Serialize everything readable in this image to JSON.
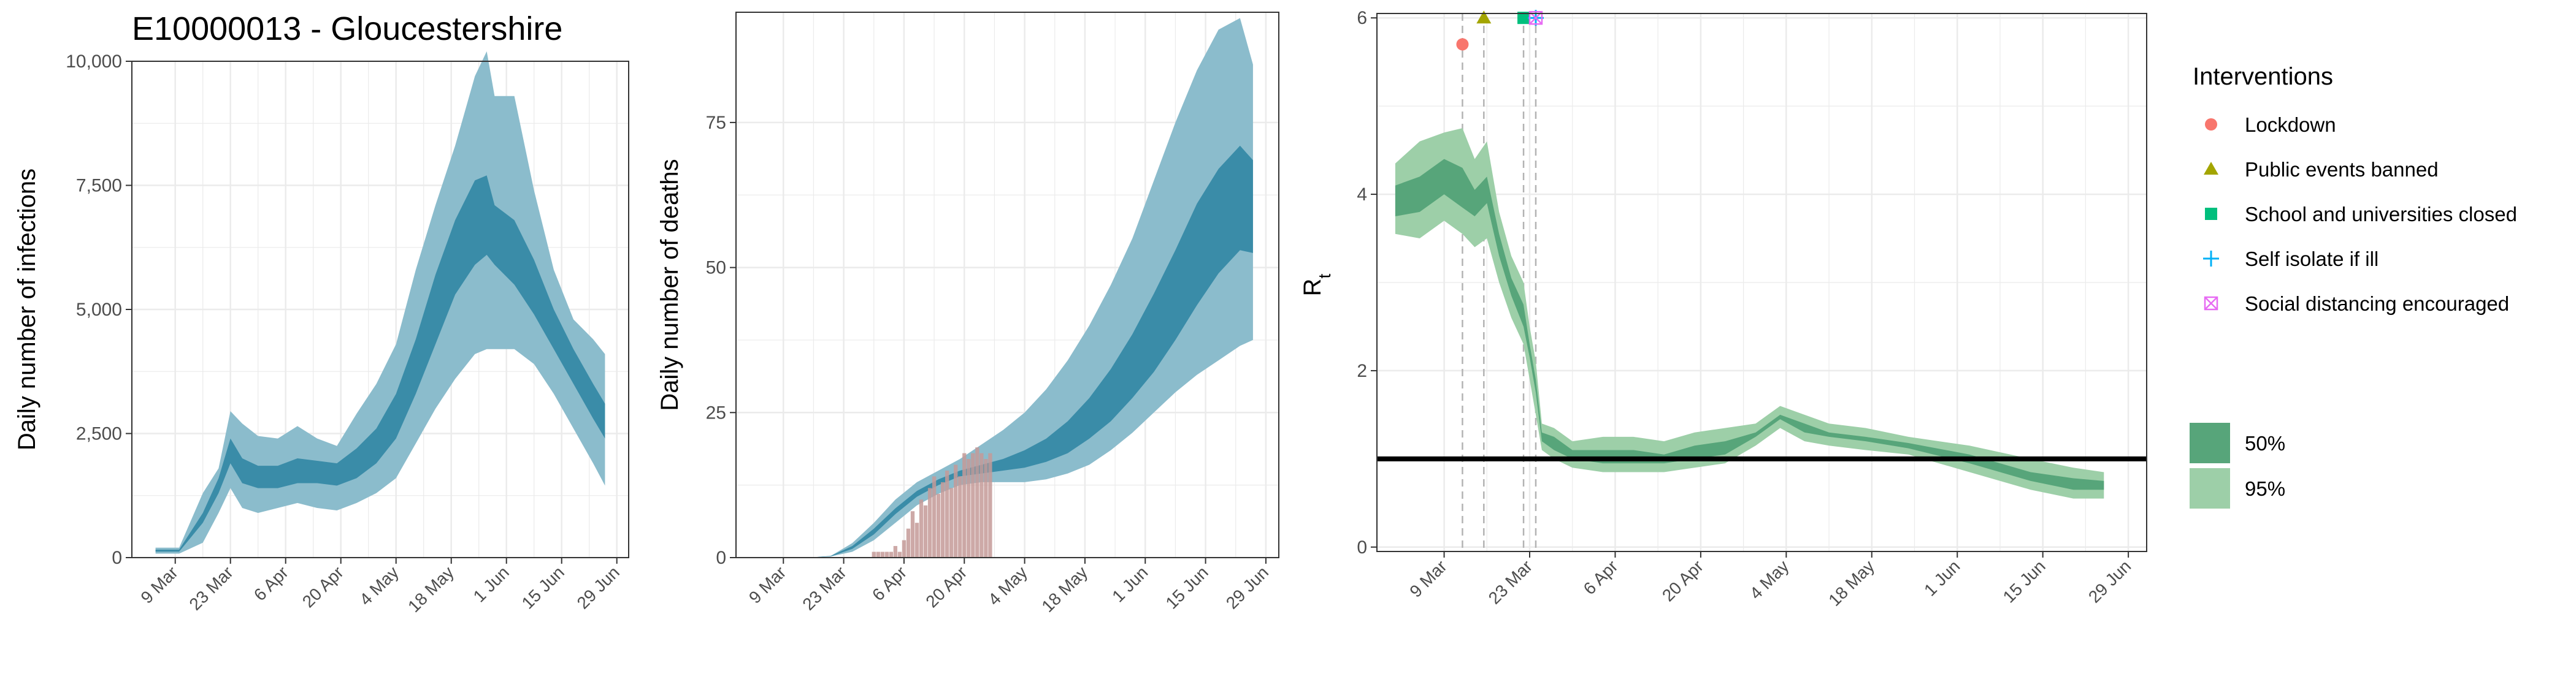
{
  "figure": {
    "title": "E10000013 - Gloucestershire",
    "legend_title": "Interventions"
  },
  "colors": {
    "blue_95": "#8bbccc",
    "blue_50": "#3a8ca8",
    "blue_line": "#4a93af",
    "bars": "#c49a98",
    "green_95": "#9dcfa8",
    "green_50": "#57a57a",
    "grid": "#ebebeb",
    "lockdown": "#f8766d",
    "public_events": "#a3a500",
    "schools": "#00bf7d",
    "self_isolate": "#00b0f6",
    "social_distancing": "#e76bf3"
  },
  "legend": {
    "interventions": [
      {
        "label": "Lockdown",
        "shape": "circle"
      },
      {
        "label": "Public events banned",
        "shape": "triangle"
      },
      {
        "label": "School and universities closed",
        "shape": "square"
      },
      {
        "label": "Self isolate if ill",
        "shape": "plus"
      },
      {
        "label": "Social distancing encouraged",
        "shape": "boxed-x"
      }
    ],
    "intervals": [
      {
        "label": "50%"
      },
      {
        "label": "95%"
      }
    ]
  },
  "chart_data": [
    {
      "type": "area",
      "panel": "infections",
      "title": "E10000013 - Gloucestershire",
      "ylabel": "Daily number of infections",
      "xlabel": "",
      "x_ticks": [
        "9 Mar",
        "23 Mar",
        "6 Apr",
        "20 Apr",
        "4 May",
        "18 May",
        "1 Jun",
        "15 Jun",
        "29 Jun"
      ],
      "x_tick_days": [
        9,
        23,
        37,
        51,
        65,
        79,
        93,
        107,
        121
      ],
      "x_range_days": [
        -2,
        124
      ],
      "y_ticks": [
        "0",
        "2,500",
        "5,000",
        "7,500",
        "10,000"
      ],
      "y_tick_values": [
        0,
        2500,
        5000,
        7500,
        10000
      ],
      "ylim": [
        0,
        10000
      ],
      "grid": true,
      "series": [
        {
          "name": "95%",
          "x_days": [
            4,
            10,
            16,
            20,
            23,
            26,
            30,
            35,
            40,
            45,
            50,
            55,
            60,
            65,
            70,
            75,
            80,
            85,
            88,
            90,
            95,
            100,
            105,
            110,
            115,
            118
          ],
          "lower": [
            80,
            80,
            300,
            900,
            1400,
            1000,
            900,
            1000,
            1100,
            1000,
            950,
            1100,
            1300,
            1600,
            2300,
            3000,
            3600,
            4100,
            4200,
            4200,
            4200,
            3900,
            3300,
            2600,
            1900,
            1450
          ],
          "upper": [
            200,
            200,
            1300,
            1800,
            2950,
            2700,
            2450,
            2400,
            2650,
            2400,
            2250,
            2900,
            3500,
            4300,
            5800,
            7100,
            8300,
            9700,
            10200,
            9300,
            9300,
            7400,
            5800,
            4800,
            4400,
            4100
          ]
        },
        {
          "name": "50%",
          "x_days": [
            4,
            10,
            16,
            20,
            23,
            26,
            30,
            35,
            40,
            45,
            50,
            55,
            60,
            65,
            70,
            75,
            80,
            85,
            88,
            90,
            95,
            100,
            105,
            110,
            115,
            118
          ],
          "lower": [
            120,
            120,
            700,
            1300,
            1900,
            1500,
            1400,
            1400,
            1500,
            1500,
            1450,
            1600,
            1900,
            2400,
            3300,
            4300,
            5300,
            5900,
            6100,
            5900,
            5500,
            4900,
            4200,
            3500,
            2800,
            2400
          ],
          "upper": [
            160,
            160,
            900,
            1600,
            2400,
            2000,
            1850,
            1850,
            2000,
            1950,
            1900,
            2200,
            2600,
            3300,
            4400,
            5700,
            6800,
            7600,
            7700,
            7100,
            6800,
            6000,
            5000,
            4200,
            3500,
            3100
          ]
        }
      ]
    },
    {
      "type": "area",
      "panel": "deaths",
      "title": "",
      "ylabel": "Daily number of deaths",
      "xlabel": "",
      "x_ticks": [
        "9 Mar",
        "23 Mar",
        "6 Apr",
        "20 Apr",
        "4 May",
        "18 May",
        "1 Jun",
        "15 Jun",
        "29 Jun"
      ],
      "x_tick_days": [
        9,
        23,
        37,
        51,
        65,
        79,
        93,
        107,
        121
      ],
      "x_range_days": [
        -2,
        124
      ],
      "y_ticks": [
        "0",
        "25",
        "50",
        "75"
      ],
      "y_tick_values": [
        0,
        25,
        50,
        75
      ],
      "ylim": [
        0,
        94
      ],
      "grid": true,
      "series": [
        {
          "name": "95%",
          "x_days": [
            4,
            15,
            20,
            25,
            30,
            35,
            40,
            45,
            50,
            55,
            60,
            65,
            70,
            75,
            80,
            85,
            90,
            95,
            100,
            105,
            110,
            115,
            118
          ],
          "lower": [
            0,
            0,
            0.2,
            1,
            3,
            6,
            9,
            11,
            12.5,
            13,
            13,
            13,
            13.5,
            14.5,
            16,
            18.5,
            21.5,
            25,
            28.5,
            31.5,
            34,
            36.5,
            37.5
          ],
          "upper": [
            0,
            0,
            0.3,
            2.5,
            6,
            10,
            13,
            15,
            17,
            19.5,
            22,
            25,
            29,
            34,
            40,
            47,
            55,
            65,
            75,
            84,
            91,
            93,
            85
          ]
        },
        {
          "name": "50%",
          "x_days": [
            4,
            15,
            20,
            25,
            30,
            35,
            40,
            45,
            50,
            55,
            60,
            65,
            70,
            75,
            80,
            85,
            90,
            95,
            100,
            105,
            110,
            115,
            118
          ],
          "lower": [
            0,
            0,
            0.2,
            1.5,
            4,
            7.5,
            10.5,
            12.5,
            14,
            14.5,
            15,
            15.5,
            16.5,
            18,
            20.5,
            23.5,
            27.5,
            32,
            37.5,
            43.5,
            49,
            53,
            52.5
          ],
          "upper": [
            0,
            0,
            0.3,
            2,
            5,
            8.5,
            11.5,
            13.5,
            15,
            16,
            17,
            18.5,
            20.5,
            23.5,
            27.5,
            32.5,
            38.5,
            45.5,
            53,
            61,
            67,
            71,
            68.5
          ]
        }
      ],
      "observed_bars": {
        "x_days_start": 29,
        "x_days_end": 57,
        "values": [
          0,
          1,
          1,
          1,
          1,
          1,
          2,
          1,
          3,
          5,
          8,
          6,
          10,
          9,
          12,
          14,
          11,
          13,
          15,
          12,
          16,
          14,
          18,
          17,
          18,
          19,
          18,
          17,
          18
        ]
      }
    },
    {
      "type": "area",
      "panel": "rt",
      "title": "",
      "ylabel": "Rt",
      "xlabel": "",
      "x_ticks": [
        "9 Mar",
        "23 Mar",
        "6 Apr",
        "20 Apr",
        "4 May",
        "18 May",
        "1 Jun",
        "15 Jun",
        "29 Jun"
      ],
      "x_tick_days": [
        9,
        23,
        37,
        51,
        65,
        79,
        93,
        107,
        121
      ],
      "x_range_days": [
        -2,
        124
      ],
      "y_ticks": [
        "0",
        "2",
        "4",
        "6"
      ],
      "y_tick_values": [
        0,
        2,
        4,
        6
      ],
      "ylim": [
        -0.05,
        6.05
      ],
      "grid": true,
      "reference_line": 1,
      "intervention_days": [
        12,
        15.5,
        22,
        24,
        24
      ],
      "series": [
        {
          "name": "95%",
          "x_days": [
            1,
            5,
            9,
            12,
            14,
            16,
            18,
            20,
            22,
            23,
            24,
            25,
            27,
            30,
            35,
            40,
            45,
            50,
            55,
            60,
            64,
            68,
            72,
            78,
            85,
            95,
            105,
            112,
            117
          ],
          "lower": [
            3.55,
            3.5,
            3.7,
            3.55,
            3.4,
            3.5,
            3.0,
            2.6,
            2.3,
            1.9,
            1.5,
            1.1,
            1.0,
            0.9,
            0.85,
            0.85,
            0.85,
            0.9,
            0.95,
            1.15,
            1.35,
            1.2,
            1.15,
            1.1,
            1.05,
            0.85,
            0.65,
            0.55,
            0.55
          ],
          "upper": [
            4.35,
            4.6,
            4.7,
            4.75,
            4.4,
            4.6,
            3.8,
            3.3,
            3.0,
            2.5,
            2.1,
            1.4,
            1.35,
            1.2,
            1.25,
            1.25,
            1.2,
            1.3,
            1.35,
            1.4,
            1.6,
            1.5,
            1.4,
            1.35,
            1.25,
            1.15,
            1.0,
            0.9,
            0.85
          ]
        },
        {
          "name": "50%",
          "x_days": [
            1,
            5,
            9,
            12,
            14,
            16,
            18,
            20,
            22,
            23,
            24,
            25,
            27,
            30,
            35,
            40,
            45,
            50,
            55,
            60,
            64,
            68,
            72,
            78,
            85,
            95,
            105,
            112,
            117
          ],
          "lower": [
            3.75,
            3.8,
            4.0,
            3.85,
            3.75,
            3.9,
            3.3,
            2.85,
            2.5,
            2.15,
            1.75,
            1.2,
            1.1,
            1.0,
            0.95,
            0.95,
            0.95,
            1.0,
            1.05,
            1.25,
            1.45,
            1.3,
            1.25,
            1.2,
            1.12,
            0.95,
            0.75,
            0.65,
            0.65
          ],
          "upper": [
            4.1,
            4.2,
            4.4,
            4.3,
            4.05,
            4.2,
            3.55,
            3.05,
            2.75,
            2.3,
            1.9,
            1.3,
            1.25,
            1.1,
            1.1,
            1.1,
            1.05,
            1.15,
            1.2,
            1.3,
            1.5,
            1.4,
            1.3,
            1.25,
            1.18,
            1.05,
            0.85,
            0.78,
            0.75
          ]
        }
      ]
    }
  ]
}
